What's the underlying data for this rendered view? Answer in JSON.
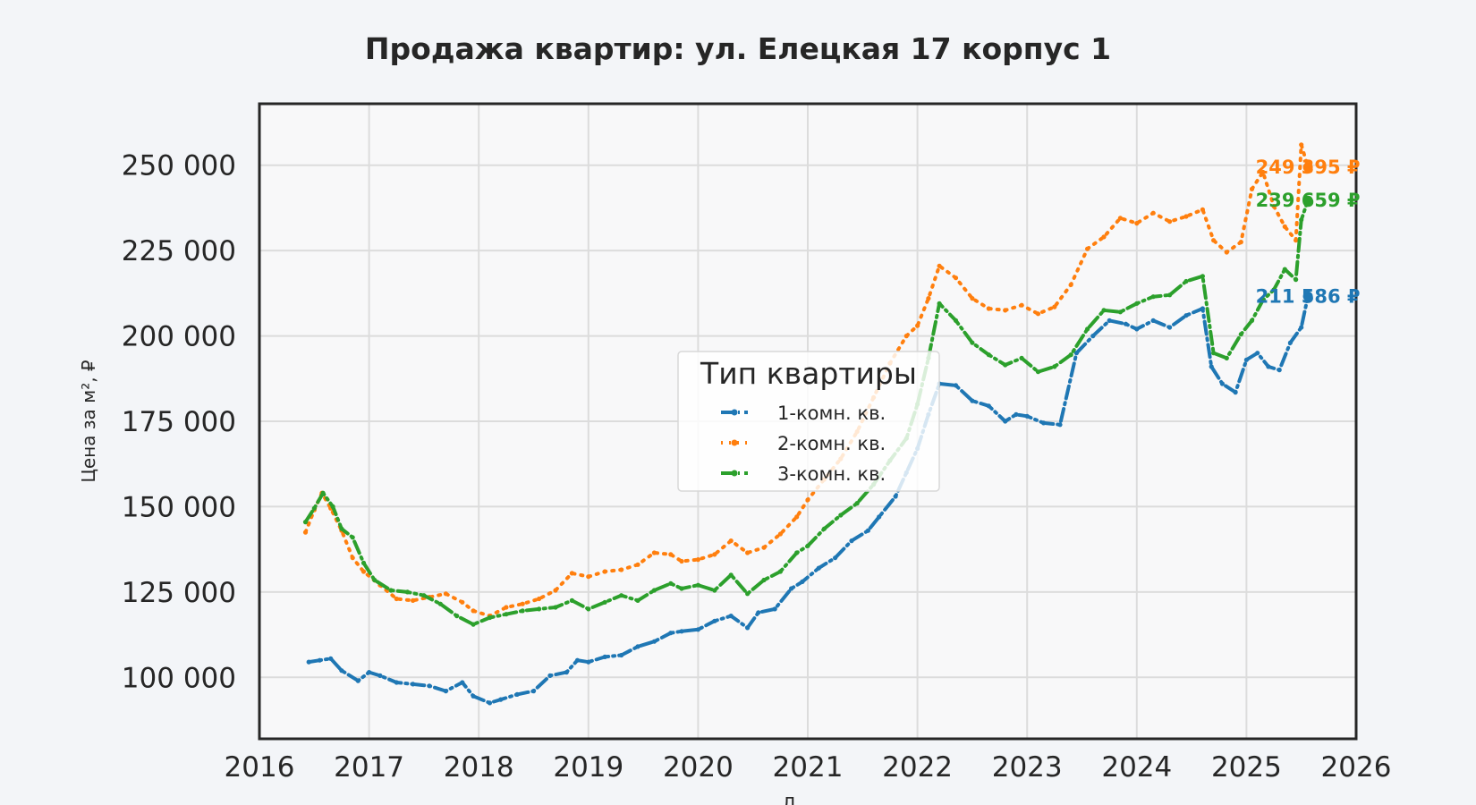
{
  "chart_data": {
    "type": "line",
    "title": "Продажа квартир: ул. Елецкая 17 корпус 1",
    "xlabel": "Д",
    "ylabel": "Цена за м², ₽",
    "xlim": [
      2016,
      2026
    ],
    "ylim": [
      82000,
      268000
    ],
    "x_ticks": [
      "2016",
      "2017",
      "2018",
      "2019",
      "2020",
      "2021",
      "2022",
      "2023",
      "2024",
      "2025",
      "2026"
    ],
    "y_ticks": [
      "100 000",
      "125 000",
      "150 000",
      "175 000",
      "200 000",
      "225 000",
      "250 000"
    ],
    "grid": true,
    "legend": {
      "title": "Тип квартиры",
      "placement": "center"
    },
    "series": [
      {
        "name": "1-комн. кв.",
        "color": "#1f77b4",
        "style": "dash-dot",
        "end_label": "211 586 ₽",
        "points": [
          [
            2016.45,
            104500
          ],
          [
            2016.55,
            105000
          ],
          [
            2016.65,
            105500
          ],
          [
            2016.75,
            102000
          ],
          [
            2016.9,
            99000
          ],
          [
            2017.0,
            101500
          ],
          [
            2017.1,
            100500
          ],
          [
            2017.25,
            98500
          ],
          [
            2017.4,
            98000
          ],
          [
            2017.55,
            97500
          ],
          [
            2017.7,
            96000
          ],
          [
            2017.85,
            98500
          ],
          [
            2017.95,
            94500
          ],
          [
            2018.1,
            92500
          ],
          [
            2018.2,
            93500
          ],
          [
            2018.35,
            95000
          ],
          [
            2018.5,
            96000
          ],
          [
            2018.65,
            100500
          ],
          [
            2018.8,
            101500
          ],
          [
            2018.9,
            105000
          ],
          [
            2019.0,
            104500
          ],
          [
            2019.15,
            106000
          ],
          [
            2019.3,
            106500
          ],
          [
            2019.45,
            109000
          ],
          [
            2019.6,
            110500
          ],
          [
            2019.75,
            113000
          ],
          [
            2019.85,
            113500
          ],
          [
            2020.0,
            114000
          ],
          [
            2020.15,
            116500
          ],
          [
            2020.3,
            118000
          ],
          [
            2020.45,
            114500
          ],
          [
            2020.55,
            119000
          ],
          [
            2020.7,
            120000
          ],
          [
            2020.85,
            126000
          ],
          [
            2020.95,
            128000
          ],
          [
            2021.1,
            132000
          ],
          [
            2021.25,
            135000
          ],
          [
            2021.4,
            140000
          ],
          [
            2021.55,
            143000
          ],
          [
            2021.65,
            147000
          ],
          [
            2021.8,
            153000
          ],
          [
            2021.9,
            160000
          ],
          [
            2022.0,
            167000
          ],
          [
            2022.1,
            177000
          ],
          [
            2022.2,
            186000
          ],
          [
            2022.35,
            185500
          ],
          [
            2022.5,
            181000
          ],
          [
            2022.65,
            179500
          ],
          [
            2022.8,
            175000
          ],
          [
            2022.9,
            177000
          ],
          [
            2023.0,
            176500
          ],
          [
            2023.15,
            174500
          ],
          [
            2023.3,
            174000
          ],
          [
            2023.45,
            195000
          ],
          [
            2023.6,
            200000
          ],
          [
            2023.75,
            204500
          ],
          [
            2023.9,
            203500
          ],
          [
            2024.0,
            202000
          ],
          [
            2024.15,
            204500
          ],
          [
            2024.3,
            202500
          ],
          [
            2024.45,
            206000
          ],
          [
            2024.6,
            208000
          ],
          [
            2024.68,
            191000
          ],
          [
            2024.78,
            186000
          ],
          [
            2024.9,
            183500
          ],
          [
            2025.0,
            193000
          ],
          [
            2025.1,
            195000
          ],
          [
            2025.2,
            191000
          ],
          [
            2025.3,
            190000
          ],
          [
            2025.4,
            198000
          ],
          [
            2025.5,
            202500
          ],
          [
            2025.56,
            211586
          ]
        ]
      },
      {
        "name": "2-комн. кв.",
        "color": "#ff7f0e",
        "style": "dotted",
        "end_label": "249 395 ₽",
        "points": [
          [
            2016.42,
            142500
          ],
          [
            2016.5,
            149000
          ],
          [
            2016.57,
            154000
          ],
          [
            2016.65,
            149500
          ],
          [
            2016.75,
            143000
          ],
          [
            2016.85,
            135000
          ],
          [
            2016.95,
            131000
          ],
          [
            2017.1,
            127000
          ],
          [
            2017.25,
            123000
          ],
          [
            2017.4,
            122500
          ],
          [
            2017.55,
            123500
          ],
          [
            2017.7,
            124500
          ],
          [
            2017.85,
            122000
          ],
          [
            2017.95,
            119500
          ],
          [
            2018.1,
            118000
          ],
          [
            2018.25,
            120500
          ],
          [
            2018.4,
            121500
          ],
          [
            2018.55,
            123000
          ],
          [
            2018.7,
            125500
          ],
          [
            2018.85,
            130500
          ],
          [
            2019.0,
            129500
          ],
          [
            2019.15,
            131000
          ],
          [
            2019.3,
            131500
          ],
          [
            2019.45,
            133000
          ],
          [
            2019.6,
            136500
          ],
          [
            2019.75,
            136000
          ],
          [
            2019.85,
            134000
          ],
          [
            2020.0,
            134500
          ],
          [
            2020.15,
            136000
          ],
          [
            2020.3,
            140000
          ],
          [
            2020.45,
            136500
          ],
          [
            2020.6,
            138000
          ],
          [
            2020.75,
            142000
          ],
          [
            2020.9,
            147000
          ],
          [
            2021.0,
            152000
          ],
          [
            2021.15,
            158000
          ],
          [
            2021.3,
            164000
          ],
          [
            2021.45,
            172000
          ],
          [
            2021.6,
            182000
          ],
          [
            2021.75,
            192000
          ],
          [
            2021.9,
            200000
          ],
          [
            2022.0,
            203000
          ],
          [
            2022.1,
            211000
          ],
          [
            2022.2,
            220500
          ],
          [
            2022.35,
            217000
          ],
          [
            2022.5,
            211000
          ],
          [
            2022.65,
            208000
          ],
          [
            2022.8,
            207500
          ],
          [
            2022.95,
            209000
          ],
          [
            2023.1,
            206500
          ],
          [
            2023.25,
            208500
          ],
          [
            2023.4,
            215000
          ],
          [
            2023.55,
            225500
          ],
          [
            2023.7,
            229000
          ],
          [
            2023.85,
            234500
          ],
          [
            2024.0,
            233000
          ],
          [
            2024.15,
            236000
          ],
          [
            2024.3,
            233500
          ],
          [
            2024.45,
            235000
          ],
          [
            2024.6,
            237000
          ],
          [
            2024.7,
            228000
          ],
          [
            2024.82,
            224500
          ],
          [
            2024.95,
            227500
          ],
          [
            2025.05,
            243000
          ],
          [
            2025.15,
            248000
          ],
          [
            2025.25,
            238000
          ],
          [
            2025.35,
            232000
          ],
          [
            2025.45,
            228000
          ],
          [
            2025.5,
            256000
          ],
          [
            2025.56,
            249395
          ]
        ]
      },
      {
        "name": "3-комн. кв.",
        "color": "#2ca02c",
        "style": "dash-dot",
        "end_label": "239 659 ₽",
        "points": [
          [
            2016.42,
            145500
          ],
          [
            2016.5,
            149500
          ],
          [
            2016.58,
            154000
          ],
          [
            2016.67,
            150000
          ],
          [
            2016.75,
            143500
          ],
          [
            2016.85,
            141000
          ],
          [
            2016.95,
            133500
          ],
          [
            2017.05,
            128500
          ],
          [
            2017.2,
            125500
          ],
          [
            2017.35,
            125000
          ],
          [
            2017.5,
            124000
          ],
          [
            2017.65,
            121500
          ],
          [
            2017.8,
            118000
          ],
          [
            2017.95,
            115500
          ],
          [
            2018.1,
            117500
          ],
          [
            2018.25,
            118500
          ],
          [
            2018.4,
            119500
          ],
          [
            2018.55,
            120000
          ],
          [
            2018.7,
            120500
          ],
          [
            2018.85,
            122500
          ],
          [
            2019.0,
            120000
          ],
          [
            2019.15,
            122000
          ],
          [
            2019.3,
            124000
          ],
          [
            2019.45,
            122500
          ],
          [
            2019.6,
            125500
          ],
          [
            2019.75,
            127500
          ],
          [
            2019.85,
            126000
          ],
          [
            2020.0,
            127000
          ],
          [
            2020.15,
            125500
          ],
          [
            2020.3,
            130000
          ],
          [
            2020.45,
            124500
          ],
          [
            2020.6,
            128500
          ],
          [
            2020.75,
            131000
          ],
          [
            2020.9,
            136500
          ],
          [
            2021.0,
            138500
          ],
          [
            2021.15,
            143500
          ],
          [
            2021.3,
            147500
          ],
          [
            2021.45,
            151000
          ],
          [
            2021.6,
            156500
          ],
          [
            2021.75,
            163500
          ],
          [
            2021.9,
            170000
          ],
          [
            2022.0,
            180000
          ],
          [
            2022.1,
            193500
          ],
          [
            2022.2,
            209500
          ],
          [
            2022.35,
            204500
          ],
          [
            2022.5,
            198000
          ],
          [
            2022.65,
            194500
          ],
          [
            2022.8,
            191500
          ],
          [
            2022.95,
            193500
          ],
          [
            2023.1,
            189500
          ],
          [
            2023.25,
            191000
          ],
          [
            2023.4,
            194500
          ],
          [
            2023.55,
            202000
          ],
          [
            2023.7,
            207500
          ],
          [
            2023.85,
            207000
          ],
          [
            2024.0,
            209500
          ],
          [
            2024.15,
            211500
          ],
          [
            2024.3,
            212000
          ],
          [
            2024.45,
            216000
          ],
          [
            2024.6,
            217500
          ],
          [
            2024.7,
            195000
          ],
          [
            2024.82,
            193500
          ],
          [
            2024.95,
            200500
          ],
          [
            2025.05,
            204500
          ],
          [
            2025.15,
            210500
          ],
          [
            2025.25,
            213500
          ],
          [
            2025.35,
            219500
          ],
          [
            2025.45,
            216500
          ],
          [
            2025.5,
            234000
          ],
          [
            2025.56,
            239659
          ]
        ]
      }
    ]
  }
}
